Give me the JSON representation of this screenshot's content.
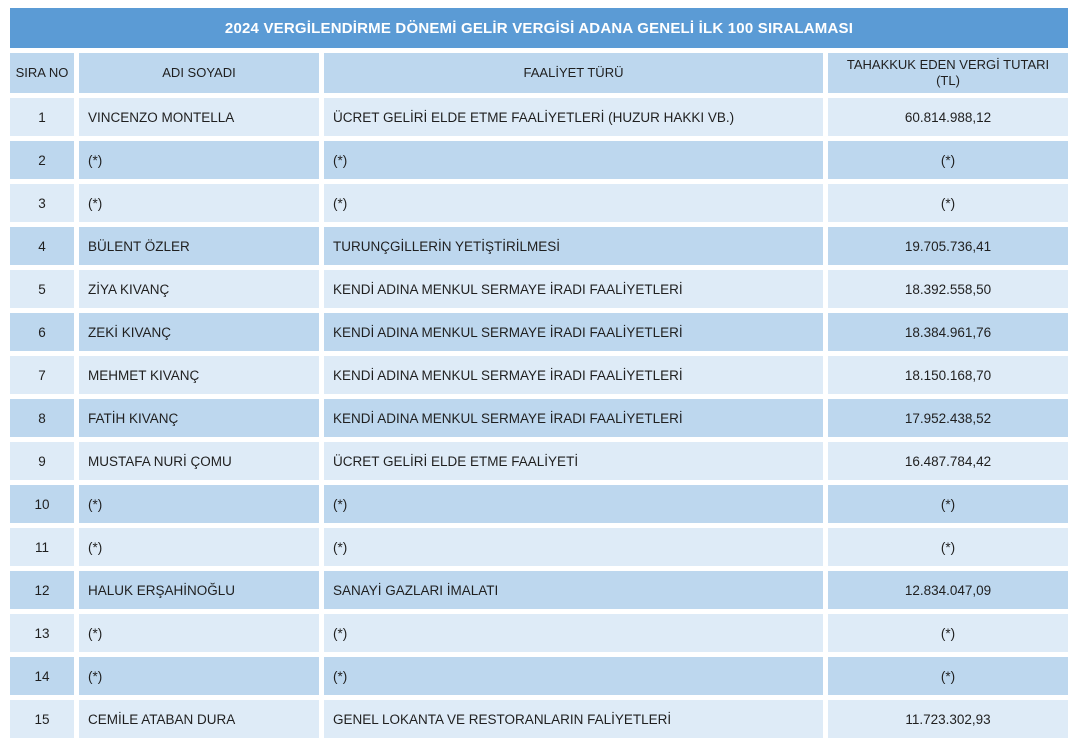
{
  "table": {
    "title": "2024 VERGİLENDİRME DÖNEMİ GELİR VERGİSİ ADANA GENELİ İLK 100 SIRALAMASI",
    "columns": [
      {
        "label": "SIRA NO"
      },
      {
        "label": "ADI SOYADI"
      },
      {
        "label": "FAALİYET TÜRÜ"
      },
      {
        "label": "TAHAKKUK EDEN VERGİ TUTARI",
        "sublabel": "(TL)"
      }
    ],
    "rows": [
      {
        "rank": "1",
        "name": "VINCENZO MONTELLA",
        "activity": "ÜCRET GELİRİ ELDE ETME FAALİYETLERİ (HUZUR HAKKI VB.)",
        "tax": "60.814.988,12"
      },
      {
        "rank": "2",
        "name": "(*)",
        "activity": "(*)",
        "tax": "(*)"
      },
      {
        "rank": "3",
        "name": "(*)",
        "activity": "(*)",
        "tax": "(*)"
      },
      {
        "rank": "4",
        "name": "BÜLENT ÖZLER",
        "activity": "TURUNÇGİLLERİN YETİŞTİRİLMESİ",
        "tax": "19.705.736,41"
      },
      {
        "rank": "5",
        "name": "ZİYA KIVANÇ",
        "activity": "KENDİ ADINA MENKUL SERMAYE İRADI FAALİYETLERİ",
        "tax": "18.392.558,50"
      },
      {
        "rank": "6",
        "name": "ZEKİ KIVANÇ",
        "activity": "KENDİ ADINA MENKUL SERMAYE İRADI FAALİYETLERİ",
        "tax": "18.384.961,76"
      },
      {
        "rank": "7",
        "name": "MEHMET KIVANÇ",
        "activity": "KENDİ ADINA MENKUL SERMAYE İRADI FAALİYETLERİ",
        "tax": "18.150.168,70"
      },
      {
        "rank": "8",
        "name": "FATİH KIVANÇ",
        "activity": "KENDİ ADINA MENKUL SERMAYE İRADI FAALİYETLERİ",
        "tax": "17.952.438,52"
      },
      {
        "rank": "9",
        "name": "MUSTAFA NURİ ÇOMU",
        "activity": "ÜCRET GELİRİ ELDE ETME FAALİYETİ",
        "tax": "16.487.784,42"
      },
      {
        "rank": "10",
        "name": "(*)",
        "activity": "(*)",
        "tax": "(*)"
      },
      {
        "rank": "11",
        "name": "(*)",
        "activity": "(*)",
        "tax": "(*)"
      },
      {
        "rank": "12",
        "name": "HALUK ERŞAHİNOĞLU",
        "activity": "SANAYİ GAZLARI İMALATI",
        "tax": "12.834.047,09"
      },
      {
        "rank": "13",
        "name": "(*)",
        "activity": "(*)",
        "tax": "(*)"
      },
      {
        "rank": "14",
        "name": "(*)",
        "activity": "(*)",
        "tax": "(*)"
      },
      {
        "rank": "15",
        "name": "CEMİLE ATABAN DURA",
        "activity": "GENEL LOKANTA VE RESTORANLARIN FALİYETLERİ",
        "tax": "11.723.302,93"
      }
    ]
  },
  "colors": {
    "title_bar": "#5B9BD5",
    "title_text": "#FFFFFF",
    "header_row": "#BDD7EE",
    "row_even": "#BDD7EE",
    "row_odd": "#DEEBF7",
    "gap": "#FFFFFF",
    "text": "#1F1F1F"
  }
}
